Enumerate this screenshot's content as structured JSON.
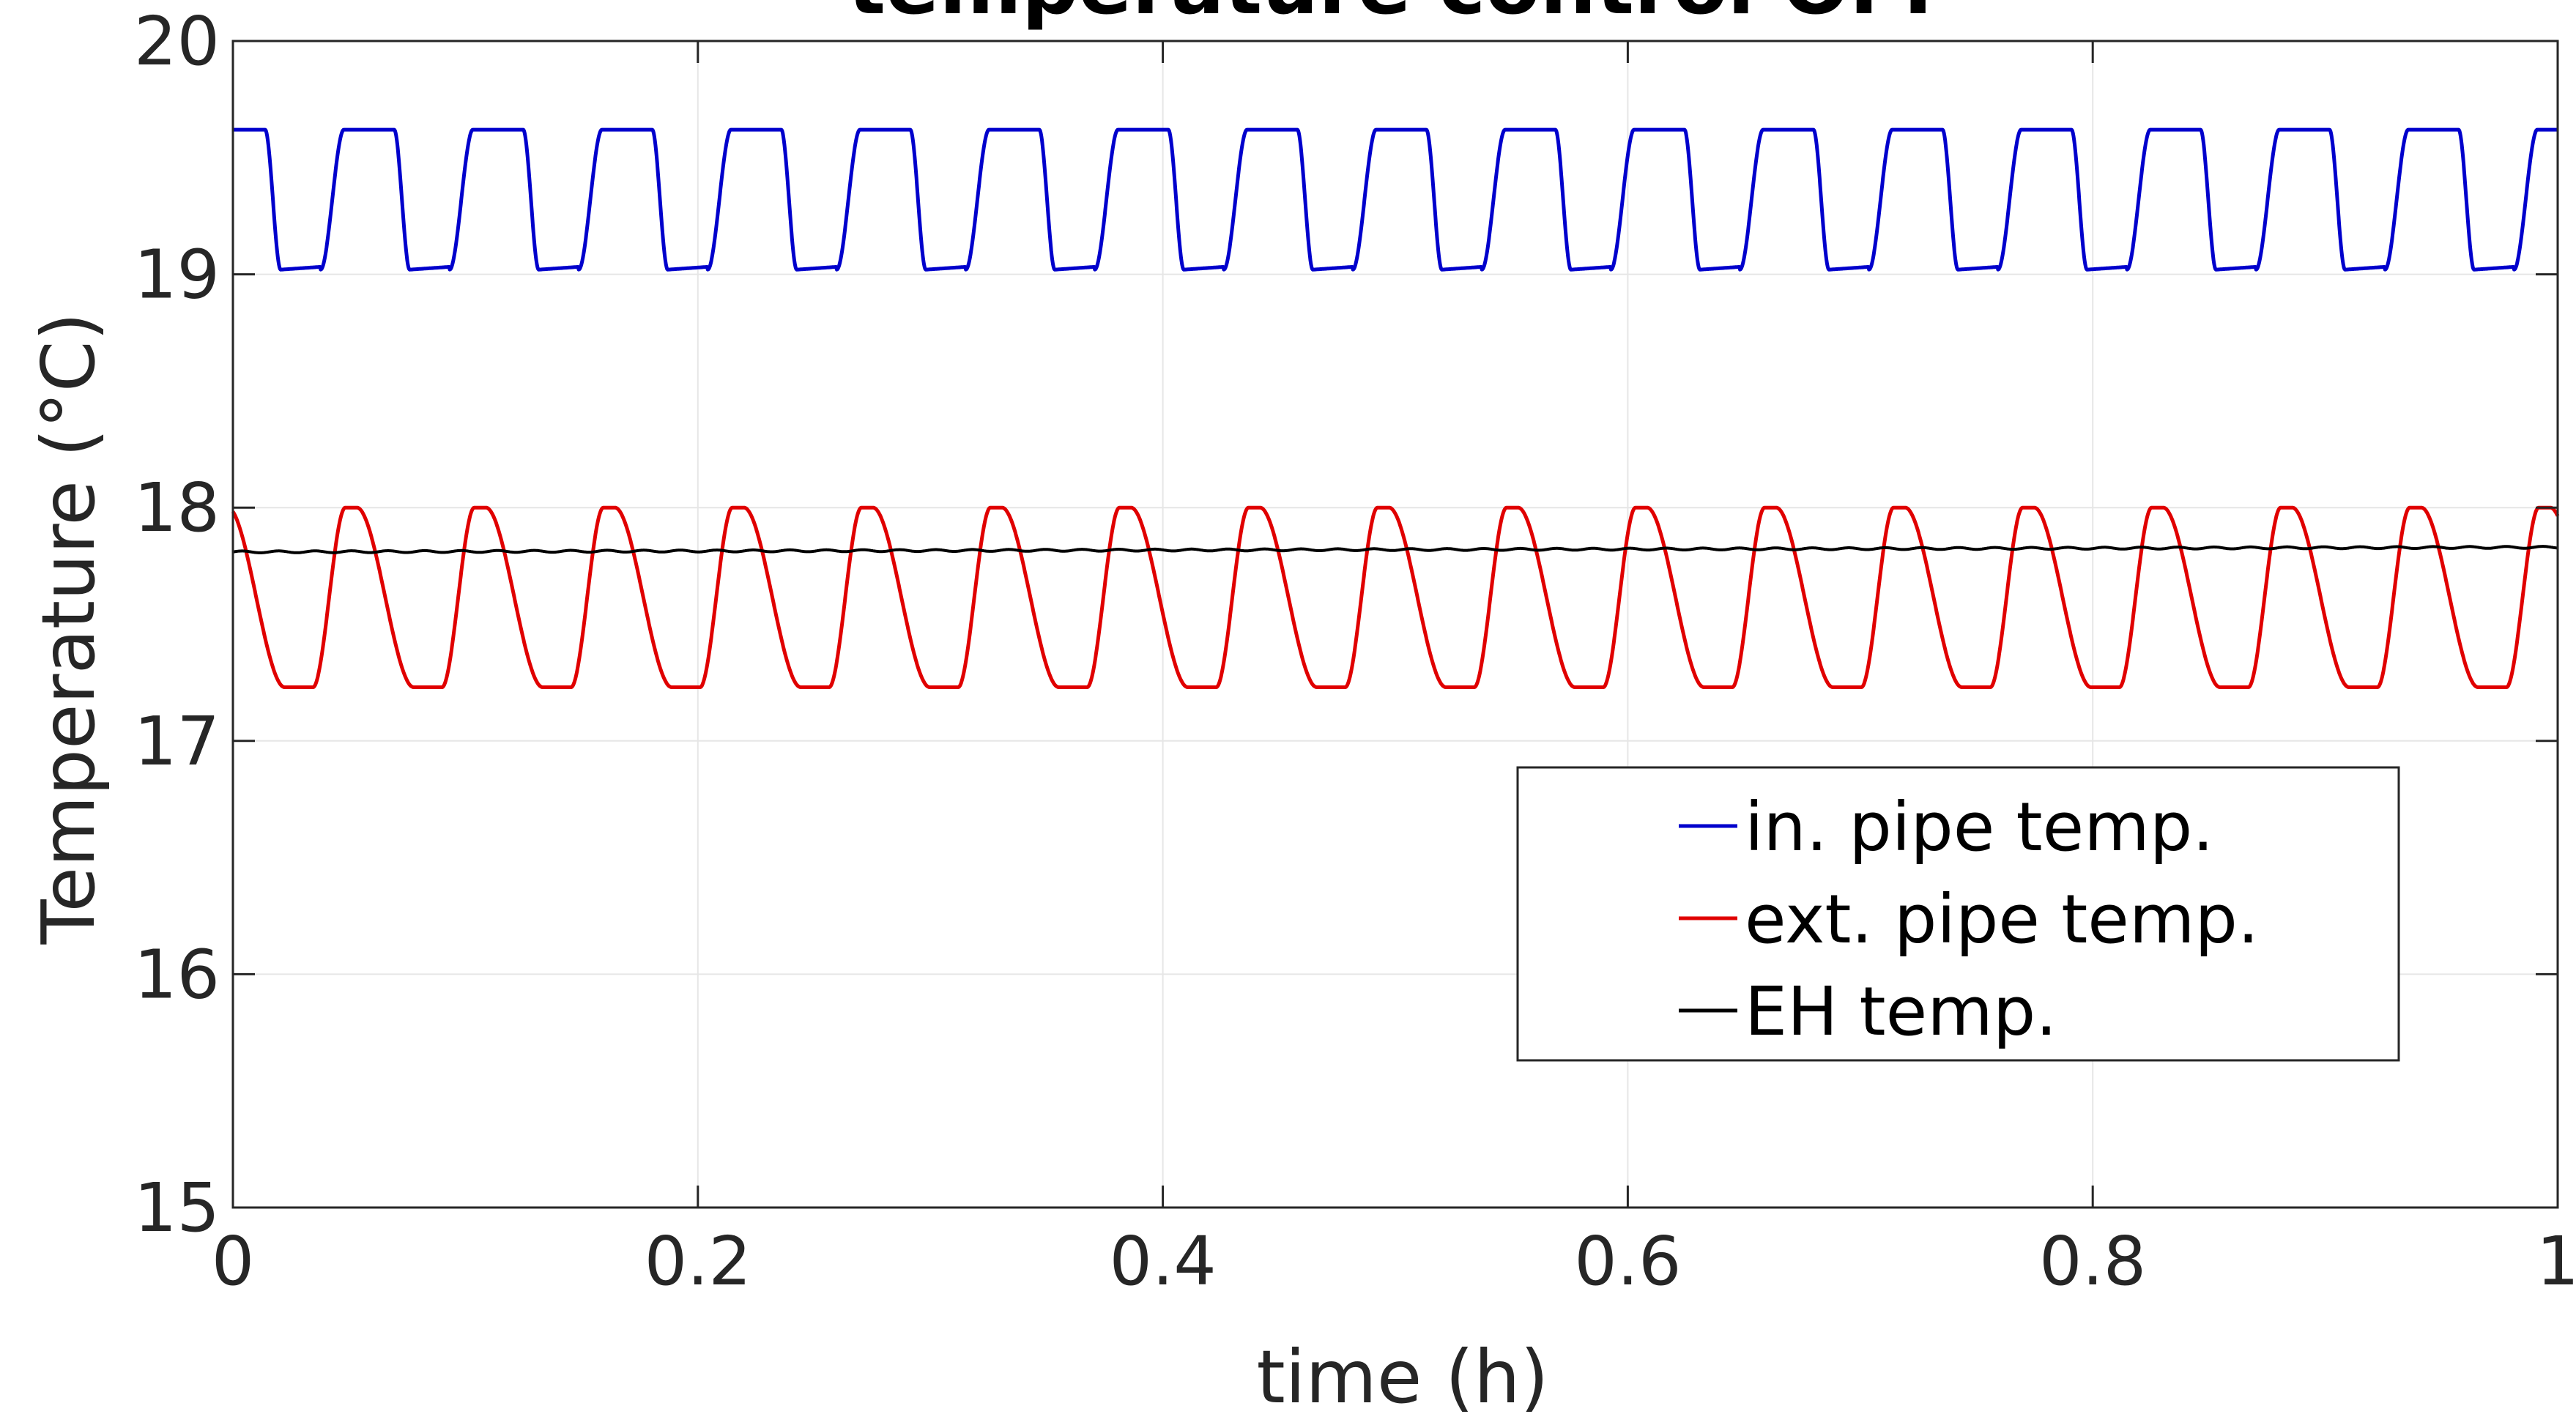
{
  "chart_data": {
    "type": "line",
    "title": "temperature control OFF",
    "xlabel": "time (h)",
    "ylabel": "Temperature (°C)",
    "xlim": [
      0,
      1
    ],
    "ylim": [
      15,
      20
    ],
    "xticks": [
      0,
      0.2,
      0.4,
      0.6,
      0.8,
      1
    ],
    "yticks": [
      15,
      16,
      17,
      18,
      19,
      20
    ],
    "xtick_labels": [
      "0",
      "0.2",
      "0.4",
      "0.6",
      "0.8",
      "1"
    ],
    "ytick_labels": [
      "15",
      "16",
      "17",
      "18",
      "19",
      "20"
    ],
    "grid": true,
    "legend_position": "lower-right",
    "series": [
      {
        "name": "in. pipe temp.",
        "color": "#0000cc",
        "period_h": 0.0555,
        "peak_x": [
          0,
          0.055,
          0.111,
          0.166,
          0.222,
          0.277,
          0.333,
          0.388,
          0.444,
          0.5,
          0.555,
          0.611,
          0.666,
          0.722,
          0.777,
          0.833,
          0.888,
          0.944,
          1.0
        ],
        "max": 19.62,
        "min": 19.02
      },
      {
        "name": "ext. pipe temp.",
        "color": "#e00000",
        "period_h": 0.0555,
        "peak_x": [
          0,
          0.05,
          0.106,
          0.161,
          0.217,
          0.272,
          0.328,
          0.383,
          0.439,
          0.494,
          0.55,
          0.605,
          0.661,
          0.716,
          0.772,
          0.827,
          0.883,
          0.938,
          0.994
        ],
        "max": 18.0,
        "min": 17.23
      },
      {
        "name": "EH temp.",
        "color": "#000000",
        "start": 17.81,
        "end": 17.83
      }
    ]
  }
}
